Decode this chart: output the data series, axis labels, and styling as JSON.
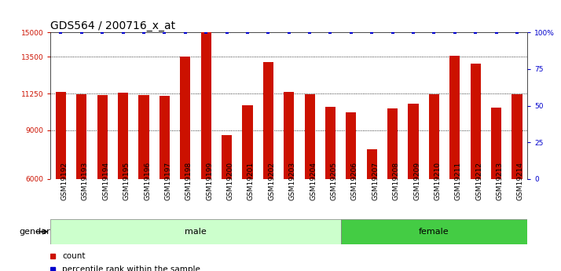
{
  "title": "GDS564 / 200716_x_at",
  "samples": [
    "GSM19192",
    "GSM19193",
    "GSM19194",
    "GSM19195",
    "GSM19196",
    "GSM19197",
    "GSM19198",
    "GSM19199",
    "GSM19200",
    "GSM19201",
    "GSM19202",
    "GSM19203",
    "GSM19204",
    "GSM19205",
    "GSM19206",
    "GSM19207",
    "GSM19208",
    "GSM19209",
    "GSM19210",
    "GSM19211",
    "GSM19212",
    "GSM19213",
    "GSM19214"
  ],
  "counts": [
    11350,
    11200,
    11150,
    11280,
    11170,
    11130,
    13500,
    15000,
    8700,
    10550,
    13200,
    11350,
    11200,
    10450,
    10100,
    7800,
    10350,
    10600,
    11200,
    13550,
    13100,
    10400,
    11200
  ],
  "ylim_left": [
    6000,
    15000
  ],
  "ylim_right": [
    0,
    100
  ],
  "yticks_left": [
    6000,
    9000,
    11250,
    13500,
    15000
  ],
  "yticks_right": [
    0,
    25,
    50,
    75,
    100
  ],
  "ytick_labels_left": [
    "6000",
    "9000",
    "11250",
    "13500",
    "15000"
  ],
  "ytick_labels_right": [
    "0",
    "25",
    "50",
    "75",
    "100%"
  ],
  "bar_color": "#cc1100",
  "percentile_color": "#0000cc",
  "male_samples_count": 14,
  "female_samples_count": 9,
  "male_color_light": "#ccffcc",
  "female_color": "#44cc44",
  "gender_label": "gender",
  "male_label": "male",
  "female_label": "female",
  "legend_count_label": "count",
  "legend_percentile_label": "percentile rank within the sample",
  "title_fontsize": 10,
  "tick_fontsize": 6.5,
  "bar_width": 0.5,
  "xtick_bg_color": "#d8d8d8",
  "grid_linestyle": ":",
  "grid_color": "#000000",
  "grid_linewidth": 0.6,
  "grid_ticks": [
    9000,
    11250,
    13500
  ]
}
